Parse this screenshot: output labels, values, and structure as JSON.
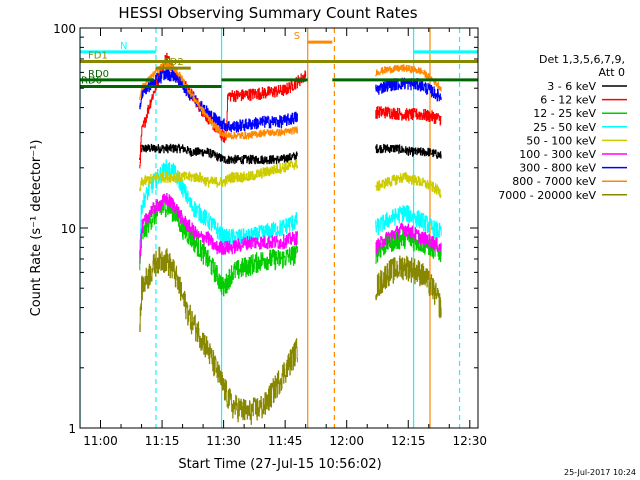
{
  "chart_data": {
    "type": "line",
    "title": "HESSI Observing Summary Count Rates",
    "xlabel": "Start Time (27-Jul-15 10:56:02)",
    "ylabel": "Count Rate (s⁻¹ detector⁻¹)",
    "y_scale": "log",
    "ylim": [
      1,
      100
    ],
    "xlim_minutes_after_1100": [
      -5,
      92
    ],
    "x_ticks": [
      {
        "label": "11:00",
        "minute": 0
      },
      {
        "label": "11:15",
        "minute": 15
      },
      {
        "label": "11:30",
        "minute": 30
      },
      {
        "label": "11:45",
        "minute": 45
      },
      {
        "label": "12:00",
        "minute": 60
      },
      {
        "label": "12:15",
        "minute": 75
      },
      {
        "label": "12:30",
        "minute": 90
      }
    ],
    "y_ticks": [
      {
        "label": "1",
        "value": 1
      },
      {
        "label": "10",
        "value": 10
      },
      {
        "label": "100",
        "value": 100
      }
    ],
    "legend": {
      "placement": "right",
      "header": [
        "Det 1,3,5,6,7,9,",
        "Att 0"
      ]
    },
    "series": [
      {
        "name": "3 - 6 keV",
        "color": "#000000",
        "noise": 0.05,
        "points": [
          [
            9.5,
            22
          ],
          [
            10,
            25
          ],
          [
            14,
            25
          ],
          [
            16,
            25
          ],
          [
            18,
            25
          ],
          [
            20,
            25
          ],
          [
            22,
            24
          ],
          [
            24,
            24
          ],
          [
            26,
            24
          ],
          [
            28,
            23
          ],
          [
            30,
            22
          ],
          [
            32,
            22
          ],
          [
            36,
            22
          ],
          [
            40,
            22
          ],
          [
            44,
            22
          ],
          [
            48,
            23
          ]
        ],
        "points2": [
          [
            67,
            25
          ],
          [
            72,
            25
          ],
          [
            76,
            24
          ],
          [
            80,
            24
          ],
          [
            83,
            23
          ]
        ]
      },
      {
        "name": "6 - 12 keV",
        "color": "#ff0000",
        "noise": 0.07,
        "points": [
          [
            9.5,
            20
          ],
          [
            10,
            30
          ],
          [
            12,
            42
          ],
          [
            14,
            55
          ],
          [
            16,
            72
          ],
          [
            17.5,
            64
          ],
          [
            19,
            55
          ],
          [
            21,
            50
          ],
          [
            23,
            44
          ],
          [
            25,
            38
          ],
          [
            27,
            34
          ],
          [
            29,
            30
          ],
          [
            30.5,
            28
          ],
          [
            31,
            46
          ],
          [
            34,
            46
          ],
          [
            38,
            47
          ],
          [
            42,
            48
          ],
          [
            45,
            49
          ],
          [
            48,
            54
          ],
          [
            50,
            58
          ]
        ],
        "points2": [
          [
            67,
            38
          ],
          [
            70,
            38
          ],
          [
            74,
            37
          ],
          [
            78,
            37
          ],
          [
            81,
            36
          ],
          [
            83,
            35
          ]
        ]
      },
      {
        "name": "12 - 25 keV",
        "color": "#00cc00",
        "noise": 0.12,
        "points": [
          [
            9.5,
            6
          ],
          [
            10,
            9
          ],
          [
            12,
            11
          ],
          [
            14,
            12
          ],
          [
            16,
            13
          ],
          [
            18,
            12
          ],
          [
            20,
            10
          ],
          [
            22,
            9
          ],
          [
            24,
            8
          ],
          [
            26,
            7
          ],
          [
            28,
            6
          ],
          [
            30,
            5
          ],
          [
            32,
            6
          ],
          [
            36,
            6.5
          ],
          [
            40,
            7
          ],
          [
            44,
            7
          ],
          [
            48,
            7.5
          ]
        ],
        "points2": [
          [
            67,
            7.5
          ],
          [
            70,
            8.5
          ],
          [
            74,
            9
          ],
          [
            78,
            8.5
          ],
          [
            81,
            8
          ],
          [
            83,
            7.5
          ]
        ]
      },
      {
        "name": "25 - 50 keV",
        "color": "#00ffff",
        "noise": 0.1,
        "points": [
          [
            9.5,
            8
          ],
          [
            10,
            13
          ],
          [
            12,
            16
          ],
          [
            14,
            18
          ],
          [
            16,
            20
          ],
          [
            18,
            19
          ],
          [
            20,
            16
          ],
          [
            22,
            13
          ],
          [
            24,
            12
          ],
          [
            26,
            11
          ],
          [
            28,
            10
          ],
          [
            30,
            9
          ],
          [
            32,
            9
          ],
          [
            36,
            9
          ],
          [
            40,
            9.5
          ],
          [
            44,
            10
          ],
          [
            48,
            11
          ]
        ],
        "points2": [
          [
            67,
            10
          ],
          [
            70,
            11
          ],
          [
            74,
            12
          ],
          [
            78,
            11
          ],
          [
            81,
            10
          ],
          [
            83,
            9.5
          ]
        ]
      },
      {
        "name": "50 - 100 keV",
        "color": "#cccc00",
        "noise": 0.06,
        "points": [
          [
            9.5,
            15
          ],
          [
            10,
            17
          ],
          [
            14,
            18
          ],
          [
            18,
            18
          ],
          [
            20,
            18
          ],
          [
            22,
            18
          ],
          [
            24,
            18
          ],
          [
            26,
            17
          ],
          [
            28,
            17
          ],
          [
            30,
            17
          ],
          [
            32,
            18
          ],
          [
            36,
            18
          ],
          [
            40,
            19
          ],
          [
            44,
            20
          ],
          [
            48,
            21
          ]
        ],
        "points2": [
          [
            67,
            16
          ],
          [
            70,
            17
          ],
          [
            74,
            18
          ],
          [
            78,
            17
          ],
          [
            81,
            16
          ],
          [
            83,
            15
          ]
        ]
      },
      {
        "name": "100 - 300 keV",
        "color": "#ff00ff",
        "noise": 0.08,
        "points": [
          [
            9.5,
            7
          ],
          [
            10,
            10
          ],
          [
            12,
            12
          ],
          [
            14,
            13
          ],
          [
            16,
            14
          ],
          [
            18,
            13
          ],
          [
            20,
            11
          ],
          [
            22,
            10
          ],
          [
            24,
            9
          ],
          [
            26,
            9
          ],
          [
            28,
            8
          ],
          [
            30,
            8
          ],
          [
            32,
            8
          ],
          [
            36,
            8.5
          ],
          [
            40,
            8.5
          ],
          [
            44,
            8.5
          ],
          [
            48,
            9
          ]
        ],
        "points2": [
          [
            67,
            8
          ],
          [
            70,
            9
          ],
          [
            74,
            10
          ],
          [
            78,
            9
          ],
          [
            81,
            8.5
          ],
          [
            83,
            8
          ]
        ]
      },
      {
        "name": "300 - 800 keV",
        "color": "#0000ff",
        "noise": 0.07,
        "points": [
          [
            9.5,
            40
          ],
          [
            10,
            47
          ],
          [
            12,
            52
          ],
          [
            14,
            56
          ],
          [
            16,
            59
          ],
          [
            18,
            58
          ],
          [
            20,
            52
          ],
          [
            22,
            46
          ],
          [
            24,
            42
          ],
          [
            26,
            38
          ],
          [
            28,
            35
          ],
          [
            30,
            33
          ],
          [
            32,
            32
          ],
          [
            36,
            33
          ],
          [
            40,
            34
          ],
          [
            44,
            34
          ],
          [
            48,
            36
          ]
        ],
        "points2": [
          [
            67,
            49
          ],
          [
            70,
            52
          ],
          [
            74,
            53
          ],
          [
            78,
            52
          ],
          [
            81,
            48
          ],
          [
            83,
            45
          ]
        ]
      },
      {
        "name": "800 - 7000 keV",
        "color": "#ff8800",
        "noise": 0.04,
        "points": [
          [
            9.5,
            45
          ],
          [
            10,
            50
          ],
          [
            12,
            56
          ],
          [
            14,
            62
          ],
          [
            16,
            66
          ],
          [
            18,
            63
          ],
          [
            20,
            55
          ],
          [
            22,
            47
          ],
          [
            24,
            41
          ],
          [
            26,
            36
          ],
          [
            28,
            32
          ],
          [
            30,
            29
          ],
          [
            32,
            29
          ],
          [
            36,
            29
          ],
          [
            40,
            30
          ],
          [
            44,
            30
          ],
          [
            48,
            31
          ]
        ],
        "points2": [
          [
            67,
            60
          ],
          [
            70,
            62
          ],
          [
            74,
            63
          ],
          [
            78,
            61
          ],
          [
            81,
            55
          ],
          [
            83,
            50
          ]
        ]
      },
      {
        "name": "7000 - 20000 keV",
        "color": "#888800",
        "noise": 0.15,
        "points": [
          [
            9.5,
            3
          ],
          [
            10,
            5
          ],
          [
            12,
            6
          ],
          [
            14,
            7
          ],
          [
            16,
            7
          ],
          [
            18,
            6
          ],
          [
            20,
            4.5
          ],
          [
            22,
            3.5
          ],
          [
            24,
            3
          ],
          [
            26,
            2.5
          ],
          [
            28,
            2
          ],
          [
            30,
            1.6
          ],
          [
            32,
            1.3
          ],
          [
            36,
            1.2
          ],
          [
            40,
            1.3
          ],
          [
            44,
            1.8
          ],
          [
            48,
            2.5
          ]
        ],
        "points2": [
          [
            67,
            5
          ],
          [
            70,
            6
          ],
          [
            74,
            6.5
          ],
          [
            78,
            6
          ],
          [
            81,
            5
          ],
          [
            83,
            4
          ]
        ]
      }
    ],
    "vertical_lines": [
      {
        "minute": -5,
        "color": "#00ffff",
        "style": "solid"
      },
      {
        "minute": 13.5,
        "color": "#00ffff",
        "style": "dashed"
      },
      {
        "minute": 29.5,
        "color": "#00ffff",
        "style": "solid"
      },
      {
        "minute": 50.5,
        "color": "#ff8800",
        "style": "solid"
      },
      {
        "minute": 57.0,
        "color": "#ff8800",
        "style": "dashed"
      },
      {
        "minute": 76.3,
        "color": "#00ffff",
        "style": "solid"
      },
      {
        "minute": 80.3,
        "color": "#ff8800",
        "style": "solid"
      },
      {
        "minute": 87.5,
        "color": "#00ffff",
        "style": "dashed"
      }
    ],
    "flag_bars": [
      {
        "label": "N",
        "color": "#00ffff",
        "value": 76,
        "segments": [
          [
            -5,
            13.5
          ],
          [
            76.3,
            92
          ]
        ]
      },
      {
        "label": "S",
        "color": "#ff8800",
        "value": 85,
        "segments": [
          [
            50.5,
            56.5
          ]
        ]
      },
      {
        "label": "FD1",
        "color": "#888800",
        "value": 68,
        "segments": [
          [
            -5,
            92
          ]
        ]
      },
      {
        "label": "FD2",
        "color": "#888800",
        "value": 63,
        "segments": [
          [
            13.5,
            22
          ]
        ]
      },
      {
        "label": "RD0",
        "color": "#006600",
        "value": 55,
        "segments": [
          [
            -5,
            13
          ],
          [
            29.5,
            50.5
          ],
          [
            56.5,
            92
          ]
        ]
      },
      {
        "label": "RD6",
        "color": "#006600",
        "value": 51,
        "segments": [
          [
            -5,
            29.5
          ]
        ]
      }
    ],
    "footer_date": "25-Jul-2017 10:24"
  }
}
